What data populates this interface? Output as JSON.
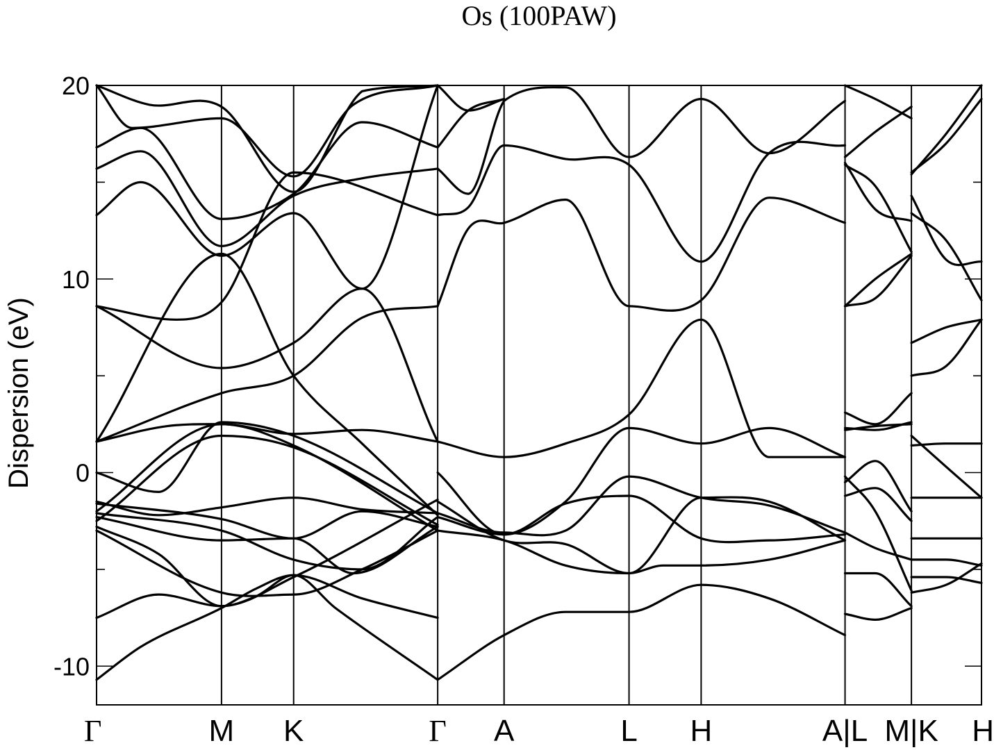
{
  "chart_data": {
    "type": "line",
    "title": "Os (100PAW)",
    "xlabel": "",
    "ylabel": "Dispersion (eV)",
    "ylim": [
      -12,
      20
    ],
    "yticks": [
      -10,
      0,
      10,
      20
    ],
    "ytick_labels": [
      "-10",
      "0",
      "10",
      "20"
    ],
    "xlim": [
      0,
      1
    ],
    "kpoints": [
      {
        "label": "Γ",
        "x": 0.0
      },
      {
        "label": "M",
        "x": 0.1412
      },
      {
        "label": "K",
        "x": 0.2227
      },
      {
        "label": "Γ",
        "x": 0.3855
      },
      {
        "label": "A",
        "x": 0.4605
      },
      {
        "label": "L",
        "x": 0.6017
      },
      {
        "label": "H",
        "x": 0.6832
      },
      {
        "label": "A|L",
        "x": 0.8458
      },
      {
        "label": "M|K",
        "x": 0.9208
      },
      {
        "label": "H",
        "x": 1.0
      }
    ],
    "series": [
      {
        "x": [
          0,
          0.05,
          0.1412,
          0.18,
          0.2227,
          0.27,
          0.3855
        ],
        "y": [
          -10.7,
          -9.0,
          -7.0,
          -6.0,
          -5.3,
          -7.0,
          -10.7
        ]
      },
      {
        "x": [
          0,
          0.07,
          0.1412,
          0.18,
          0.2227,
          0.3,
          0.3855
        ],
        "y": [
          -7.5,
          -6.3,
          -6.9,
          -6.4,
          -5.3,
          -6.5,
          -7.5
        ]
      },
      {
        "x": [
          0,
          0.1412,
          0.2227,
          0.3,
          0.3855
        ],
        "y": [
          -3.0,
          -6.2,
          -6.3,
          -5.0,
          -3.0
        ]
      },
      {
        "x": [
          0,
          0.07,
          0.1412,
          0.2227,
          0.3855
        ],
        "y": [
          -2.8,
          -4.2,
          -6.9,
          -5.4,
          -1.4
        ]
      },
      {
        "x": [
          0,
          0.1412,
          0.2227,
          0.29,
          0.3855
        ],
        "y": [
          -2.3,
          -3.5,
          -3.4,
          -5.2,
          -2.8
        ]
      },
      {
        "x": [
          0,
          0.1412,
          0.2227,
          0.3,
          0.3855
        ],
        "y": [
          -2.1,
          -3.0,
          -4.5,
          -5.0,
          -2.3
        ]
      },
      {
        "x": [
          0,
          0.1412,
          0.2227,
          0.3,
          0.3855
        ],
        "y": [
          -1.6,
          -2.4,
          -3.4,
          -2.0,
          -2.8
        ]
      },
      {
        "x": [
          0,
          0.07,
          0.1412,
          0.2227,
          0.3,
          0.3855
        ],
        "y": [
          -1.5,
          -2.2,
          -1.8,
          -1.3,
          -1.9,
          -2.1
        ]
      },
      {
        "x": [
          0,
          0.07,
          0.1412,
          0.2227,
          0.3855
        ],
        "y": [
          0.0,
          -1.0,
          2.6,
          1.9,
          -2.1
        ]
      },
      {
        "x": [
          0,
          0.1412,
          0.2227,
          0.3855
        ],
        "y": [
          -2.0,
          2.5,
          1.4,
          -3.0
        ]
      },
      {
        "x": [
          0,
          0.1412,
          0.2227,
          0.3855
        ],
        "y": [
          -2.5,
          1.9,
          1.3,
          -2.7
        ]
      },
      {
        "x": [
          0,
          0.08,
          0.1412,
          0.2227,
          0.3,
          0.3855
        ],
        "y": [
          1.6,
          2.4,
          2.5,
          2.0,
          2.2,
          1.6
        ]
      },
      {
        "x": [
          0,
          0.1412,
          0.2227,
          0.3,
          0.3855
        ],
        "y": [
          1.6,
          11.3,
          5.0,
          1.5,
          -2.2
        ]
      },
      {
        "x": [
          0,
          0.1412,
          0.2227,
          0.3,
          0.3855
        ],
        "y": [
          1.6,
          4.1,
          5.0,
          8.0,
          8.6
        ]
      },
      {
        "x": [
          0,
          0.1412,
          0.2227,
          0.3,
          0.3855
        ],
        "y": [
          8.6,
          5.4,
          6.7,
          9.5,
          1.6
        ]
      },
      {
        "x": [
          0,
          0.09,
          0.1412,
          0.2227,
          0.3855
        ],
        "y": [
          8.6,
          7.9,
          8.8,
          15.5,
          13.3
        ]
      },
      {
        "x": [
          0,
          0.05,
          0.1412,
          0.2227,
          0.3,
          0.3855
        ],
        "y": [
          13.3,
          15.0,
          11.2,
          13.4,
          9.5,
          20.0
        ]
      },
      {
        "x": [
          0,
          0.05,
          0.1412,
          0.2227,
          0.3,
          0.3855
        ],
        "y": [
          15.7,
          16.6,
          11.7,
          14.3,
          15.2,
          15.7
        ]
      },
      {
        "x": [
          0,
          0.05,
          0.1412,
          0.2227,
          0.3,
          0.3855
        ],
        "y": [
          16.8,
          17.8,
          13.1,
          14.4,
          18.1,
          16.8
        ]
      },
      {
        "x": [
          0,
          0.04,
          0.1412,
          0.2227,
          0.29,
          0.3855
        ],
        "y": [
          20.0,
          17.8,
          18.3,
          15.3,
          19.0,
          20.0
        ]
      },
      {
        "x": [
          0,
          0.06,
          0.1412,
          0.2227,
          0.3,
          0.3855
        ],
        "y": [
          20.0,
          19.0,
          18.9,
          14.5,
          19.7,
          20.0
        ]
      },
      {
        "x": [
          0.3855,
          0.4605,
          0.53,
          0.6017,
          0.6832,
          0.76,
          0.8458
        ],
        "y": [
          -10.7,
          -8.4,
          -7.2,
          -7.2,
          -5.8,
          -6.5,
          -8.4
        ]
      },
      {
        "x": [
          0.3855,
          0.4605,
          0.53,
          0.6017,
          0.64,
          0.6832,
          0.76,
          0.8458
        ],
        "y": [
          -3.0,
          -3.5,
          -4.8,
          -5.2,
          -4.8,
          -4.8,
          -4.5,
          -3.5
        ]
      },
      {
        "x": [
          0.3855,
          0.4605,
          0.53,
          0.6017,
          0.6832,
          0.76,
          0.8458
        ],
        "y": [
          -2.3,
          -3.2,
          -1.6,
          -1.2,
          -3.4,
          -3.5,
          -3.2
        ]
      },
      {
        "x": [
          0.3855,
          0.4605,
          0.53,
          0.6017,
          0.6832,
          0.76,
          0.8458
        ],
        "y": [
          -2.1,
          -3.1,
          -3.0,
          -0.2,
          -1.3,
          -1.7,
          -3.1
        ]
      },
      {
        "x": [
          0.3855,
          0.4605,
          0.53,
          0.6017,
          0.6832,
          0.76,
          0.8458
        ],
        "y": [
          -1.5,
          -3.5,
          -3.7,
          -5.2,
          -1.3,
          -1.5,
          -3.5
        ]
      },
      {
        "x": [
          0.3855,
          0.4605,
          0.53,
          0.6017,
          0.6832,
          0.76,
          0.8458
        ],
        "y": [
          0.0,
          -3.2,
          -1.5,
          2.3,
          1.5,
          2.3,
          0.8
        ]
      },
      {
        "x": [
          0.3855,
          0.4605,
          0.53,
          0.6017,
          0.6832,
          0.76,
          0.8458
        ],
        "y": [
          1.6,
          0.8,
          1.5,
          3.0,
          7.9,
          0.8,
          0.8
        ]
      },
      {
        "x": [
          0.3855,
          0.42,
          0.4605,
          0.53,
          0.6017,
          0.6832,
          0.76,
          0.8458
        ],
        "y": [
          8.6,
          12.6,
          12.9,
          14.1,
          8.6,
          8.9,
          14.2,
          12.9
        ]
      },
      {
        "x": [
          0.3855,
          0.42,
          0.4605,
          0.53,
          0.6017,
          0.6832,
          0.76,
          0.8458
        ],
        "y": [
          13.3,
          13.7,
          16.9,
          16.2,
          15.9,
          10.9,
          16.5,
          16.9
        ]
      },
      {
        "x": [
          0.3855,
          0.42,
          0.4605,
          0.53,
          0.6017,
          0.6832,
          0.76,
          0.8458
        ],
        "y": [
          15.7,
          14.4,
          19.2,
          19.9,
          16.3,
          19.3,
          16.5,
          19.2
        ]
      },
      {
        "x": [
          0.3855,
          0.42,
          0.4605
        ],
        "y": [
          16.8,
          18.7,
          19.3
        ]
      },
      {
        "x": [
          0.3855,
          0.42,
          0.4605
        ],
        "y": [
          20.0,
          18.7,
          19.3
        ]
      },
      {
        "x": [
          0.8458,
          0.88,
          0.9208
        ],
        "y": [
          -7.3,
          -7.6,
          -7.0
        ]
      },
      {
        "x": [
          0.8458,
          0.88,
          0.9208
        ],
        "y": [
          -5.2,
          -5.2,
          -6.9
        ]
      },
      {
        "x": [
          0.8458,
          0.88,
          0.9208
        ],
        "y": [
          -0.2,
          -2.0,
          -6.1
        ]
      },
      {
        "x": [
          0.8458,
          0.88,
          0.9208
        ],
        "y": [
          -1.2,
          -0.8,
          -2.5
        ]
      },
      {
        "x": [
          0.8458,
          0.88,
          0.9208
        ],
        "y": [
          -0.5,
          0.6,
          -2.0
        ]
      },
      {
        "x": [
          0.8458,
          0.88,
          0.9208
        ],
        "y": [
          2.3,
          2.2,
          2.6
        ]
      },
      {
        "x": [
          0.8458,
          0.88,
          0.9208
        ],
        "y": [
          2.2,
          2.4,
          2.5
        ]
      },
      {
        "x": [
          0.8458,
          0.88,
          0.9208
        ],
        "y": [
          3.1,
          2.5,
          4.1
        ]
      },
      {
        "x": [
          0.8458,
          0.88,
          0.9208
        ],
        "y": [
          8.6,
          9.0,
          11.2
        ]
      },
      {
        "x": [
          0.8458,
          0.88,
          0.9208
        ],
        "y": [
          8.6,
          10.0,
          11.3
        ]
      },
      {
        "x": [
          0.8458,
          0.88,
          0.9208
        ],
        "y": [
          15.9,
          14.8,
          11.4
        ]
      },
      {
        "x": [
          0.8458,
          0.88,
          0.9208
        ],
        "y": [
          16.0,
          13.6,
          13.0
        ]
      },
      {
        "x": [
          0.8458,
          0.88,
          0.9208
        ],
        "y": [
          16.3,
          17.6,
          18.9
        ]
      },
      {
        "x": [
          0.8458,
          0.88,
          0.9208
        ],
        "y": [
          20.0,
          19.3,
          18.3
        ]
      },
      {
        "x": [
          0.8458,
          0.88,
          0.9208
        ],
        "y": [
          -3.1,
          -3.9,
          -4.5
        ]
      },
      {
        "x": [
          0.9208,
          0.96,
          1.0
        ],
        "y": [
          -6.2,
          -5.8,
          -4.7
        ]
      },
      {
        "x": [
          0.9208,
          0.96,
          1.0
        ],
        "y": [
          -5.4,
          -5.4,
          -5.7
        ]
      },
      {
        "x": [
          0.9208,
          0.96,
          1.0
        ],
        "y": [
          -4.5,
          -4.5,
          -4.8
        ]
      },
      {
        "x": [
          0.9208,
          0.96,
          1.0
        ],
        "y": [
          -3.4,
          -3.4,
          -3.4
        ]
      },
      {
        "x": [
          0.9208,
          0.96,
          1.0
        ],
        "y": [
          -1.3,
          -1.3,
          -1.3
        ]
      },
      {
        "x": [
          0.9208,
          0.96,
          1.0
        ],
        "y": [
          1.4,
          1.5,
          1.5
        ]
      },
      {
        "x": [
          0.9208,
          0.96,
          1.0
        ],
        "y": [
          1.9,
          0.3,
          -1.3
        ]
      },
      {
        "x": [
          0.9208,
          0.96,
          1.0
        ],
        "y": [
          5.0,
          5.5,
          7.9
        ]
      },
      {
        "x": [
          0.9208,
          0.96,
          1.0
        ],
        "y": [
          6.7,
          7.5,
          7.9
        ]
      },
      {
        "x": [
          0.9208,
          0.96,
          1.0
        ],
        "y": [
          13.4,
          12.0,
          8.9
        ]
      },
      {
        "x": [
          0.9208,
          0.96,
          1.0
        ],
        "y": [
          14.3,
          11.0,
          10.9
        ]
      },
      {
        "x": [
          0.9208,
          0.96,
          1.0
        ],
        "y": [
          15.5,
          17.0,
          19.3
        ]
      },
      {
        "x": [
          0.9208,
          0.96,
          1.0
        ],
        "y": [
          15.4,
          17.5,
          20.0
        ]
      }
    ]
  }
}
